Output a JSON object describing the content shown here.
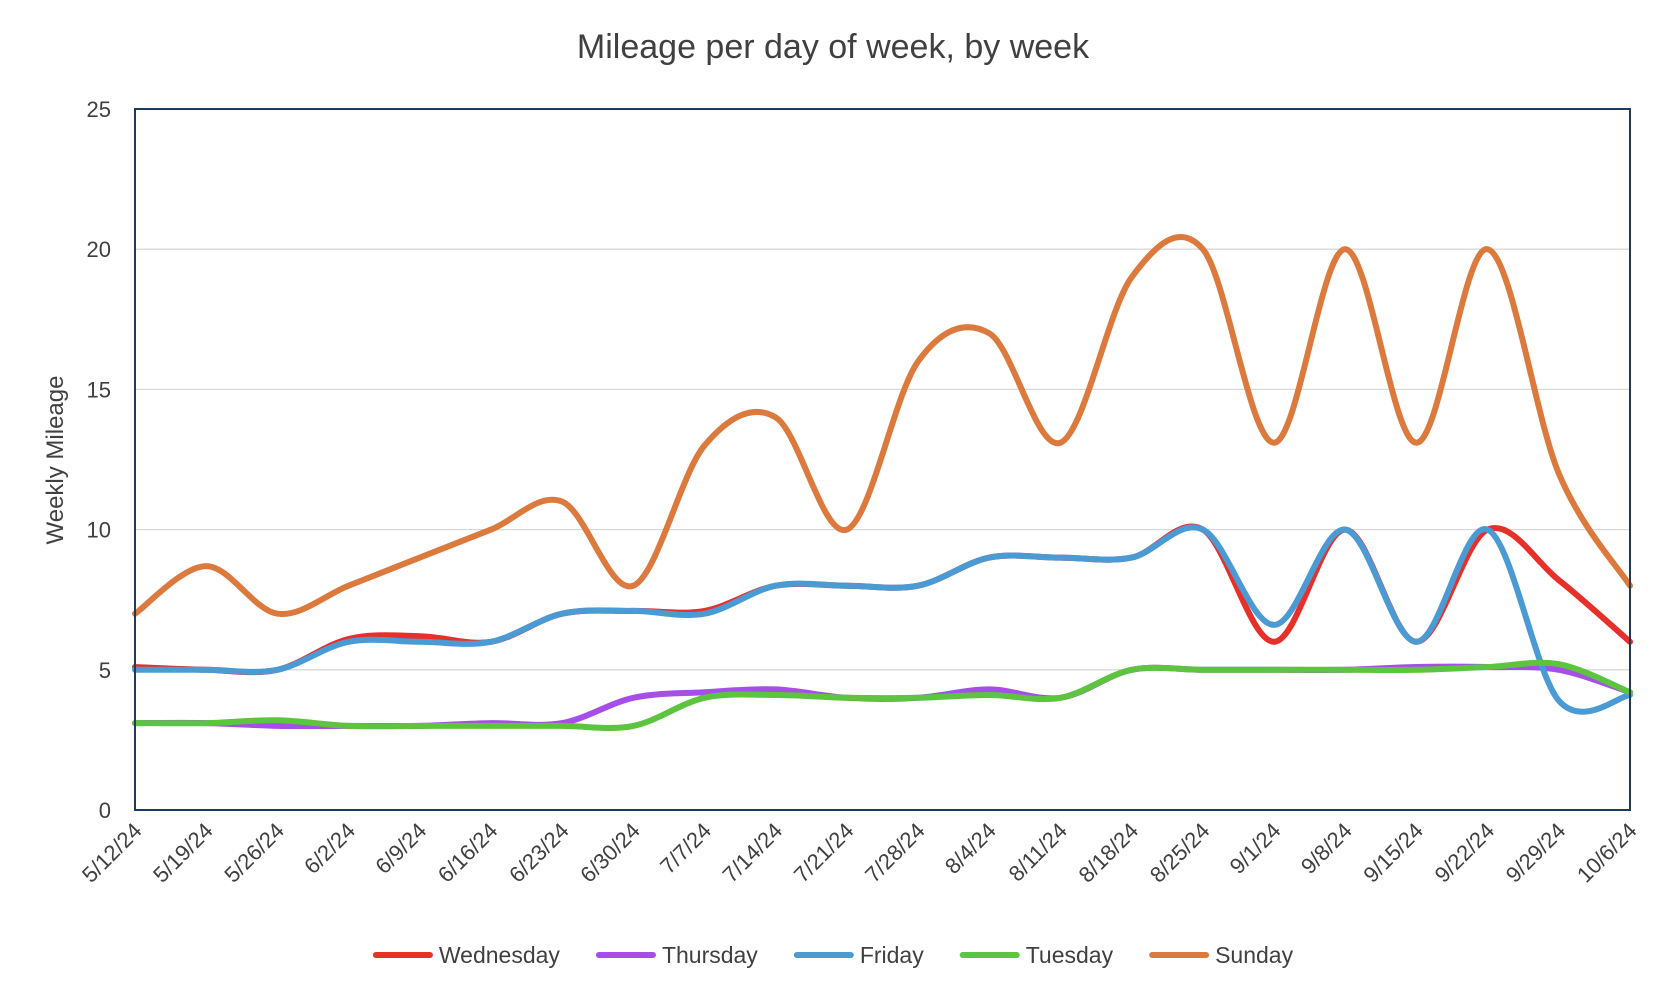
{
  "chart_data": {
    "type": "line",
    "title": "Mileage per day of week, by week",
    "xlabel": "",
    "ylabel": "Weekly Mileage",
    "ylim": [
      0,
      25
    ],
    "yticks": [
      "0",
      "5",
      "10",
      "15",
      "20",
      "25"
    ],
    "grid": true,
    "smoothed": true,
    "legend_position": "bottom",
    "categories": [
      "5/12/24",
      "5/19/24",
      "5/26/24",
      "6/2/24",
      "6/9/24",
      "6/16/24",
      "6/23/24",
      "6/30/24",
      "7/7/24",
      "7/14/24",
      "7/21/24",
      "7/28/24",
      "8/4/24",
      "8/11/24",
      "8/18/24",
      "8/25/24",
      "9/1/24",
      "9/8/24",
      "9/15/24",
      "9/22/24",
      "9/29/24",
      "10/6/24"
    ],
    "series": [
      {
        "name": "Wednesday",
        "color": "#e8302a",
        "values": [
          5.1,
          5.0,
          5.0,
          6.1,
          6.2,
          6.0,
          7.0,
          7.1,
          7.1,
          8.0,
          8.0,
          8.0,
          9.0,
          9.0,
          9.0,
          10.0,
          6.0,
          10.0,
          6.0,
          10.0,
          8.2,
          6.0
        ]
      },
      {
        "name": "Thursday",
        "color": "#a64ee8",
        "values": [
          3.1,
          3.1,
          3.0,
          3.0,
          3.0,
          3.1,
          3.1,
          4.0,
          4.2,
          4.3,
          4.0,
          4.0,
          4.3,
          4.0,
          5.0,
          5.0,
          5.0,
          5.0,
          5.1,
          5.1,
          5.0,
          4.2
        ]
      },
      {
        "name": "Friday",
        "color": "#4a9bd4",
        "values": [
          5.0,
          5.0,
          5.0,
          6.0,
          6.0,
          6.0,
          7.0,
          7.1,
          7.0,
          8.0,
          8.0,
          8.0,
          9.0,
          9.0,
          9.0,
          10.0,
          6.6,
          10.0,
          6.0,
          10.0,
          3.9,
          4.1
        ]
      },
      {
        "name": "Tuesday",
        "color": "#5cc43e",
        "values": [
          3.1,
          3.1,
          3.2,
          3.0,
          3.0,
          3.0,
          3.0,
          3.0,
          4.0,
          4.1,
          4.0,
          4.0,
          4.1,
          4.0,
          5.0,
          5.0,
          5.0,
          5.0,
          5.0,
          5.1,
          5.2,
          4.2
        ]
      },
      {
        "name": "Sunday",
        "color": "#dc7a3e",
        "values": [
          7.0,
          8.7,
          7.0,
          8.0,
          9.0,
          10.0,
          11.0,
          8.0,
          13.0,
          14.0,
          10.0,
          16.0,
          17.0,
          13.1,
          19.0,
          20.0,
          13.1,
          20.0,
          13.1,
          20.0,
          12.0,
          8.0
        ]
      }
    ]
  }
}
